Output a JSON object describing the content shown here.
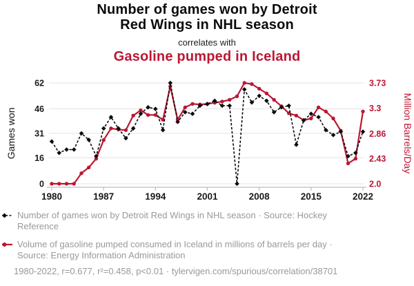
{
  "header": {
    "title_line1": "Number of games won by Detroit",
    "title_line2": "Red Wings in NHL season",
    "connector": "correlates with",
    "title2": "Gasoline pumped in Iceland"
  },
  "colors": {
    "accent_red": "#bb1733",
    "series_black": "#0d0d0d",
    "grid": "#e3e3e3",
    "axis": "#bdbdbd",
    "tick_text": "#1a1a1a",
    "legend_text": "#999999"
  },
  "chart_data": {
    "type": "line",
    "title": "Number of games won by Detroit Red Wings in NHL season correlates with Gasoline pumped in Iceland",
    "x": [
      1980,
      1981,
      1982,
      1983,
      1984,
      1985,
      1986,
      1987,
      1988,
      1989,
      1990,
      1991,
      1992,
      1993,
      1994,
      1995,
      1996,
      1997,
      1998,
      1999,
      2000,
      2001,
      2002,
      2003,
      2004,
      2005,
      2006,
      2007,
      2008,
      2009,
      2010,
      2011,
      2012,
      2013,
      2014,
      2015,
      2016,
      2017,
      2018,
      2019,
      2020,
      2021,
      2022
    ],
    "series": [
      {
        "name": "Number of games won by Detroit Red Wings in NHL season",
        "axis": "left",
        "style": "dashed-diamond",
        "values": [
          26,
          19,
          21,
          21,
          31,
          27,
          17,
          34,
          41,
          34,
          28,
          34,
          43,
          47,
          46,
          33,
          62,
          38,
          44,
          43,
          48,
          49,
          51,
          48,
          48,
          0,
          58,
          50,
          54,
          51,
          44,
          47,
          48,
          24,
          39,
          43,
          41,
          33,
          30,
          32,
          17,
          19,
          32
        ]
      },
      {
        "name": "Volume of gasoline pumped consumed in Iceland in millions of barrels per day",
        "axis": "right",
        "style": "solid-circle",
        "values": [
          2.0,
          2.0,
          2.0,
          2.0,
          2.18,
          2.28,
          2.43,
          2.75,
          2.95,
          2.93,
          2.92,
          3.17,
          3.26,
          3.18,
          3.18,
          3.1,
          3.67,
          3.1,
          3.31,
          3.37,
          3.36,
          3.37,
          3.39,
          3.41,
          3.44,
          3.5,
          3.73,
          3.71,
          3.63,
          3.55,
          3.44,
          3.33,
          3.21,
          3.17,
          3.09,
          3.12,
          3.31,
          3.24,
          3.12,
          2.91,
          2.35,
          2.43,
          3.24
        ]
      }
    ],
    "left_axis": {
      "label": "Games won",
      "ticks": [
        0,
        16,
        31,
        46,
        62
      ],
      "range": [
        0,
        62
      ]
    },
    "right_axis": {
      "label": "Million Barrels/Day",
      "ticks": [
        "2.0",
        "2.43",
        "2.86",
        "3.3",
        "3.73"
      ],
      "range": [
        2.0,
        3.73
      ]
    },
    "x_axis": {
      "ticks": [
        1980,
        1987,
        1994,
        2001,
        2008,
        2015,
        2022
      ],
      "range": [
        1980,
        2022
      ]
    },
    "grid": "horizontal-only",
    "legend_position": "bottom"
  },
  "legend": {
    "series1_label": "Number of games won by Detroit Red Wings in NHL season · Source: Hockey Reference",
    "series2_label": "Volume of gasoline pumped consumed in Iceland in millions of barrels per day · Source: Energy Information Administration"
  },
  "footer": {
    "stats": "1980-2022, r=0.677, r²=0.458, p<0.01 · tylervigen.com/spurious/correlation/38701"
  }
}
